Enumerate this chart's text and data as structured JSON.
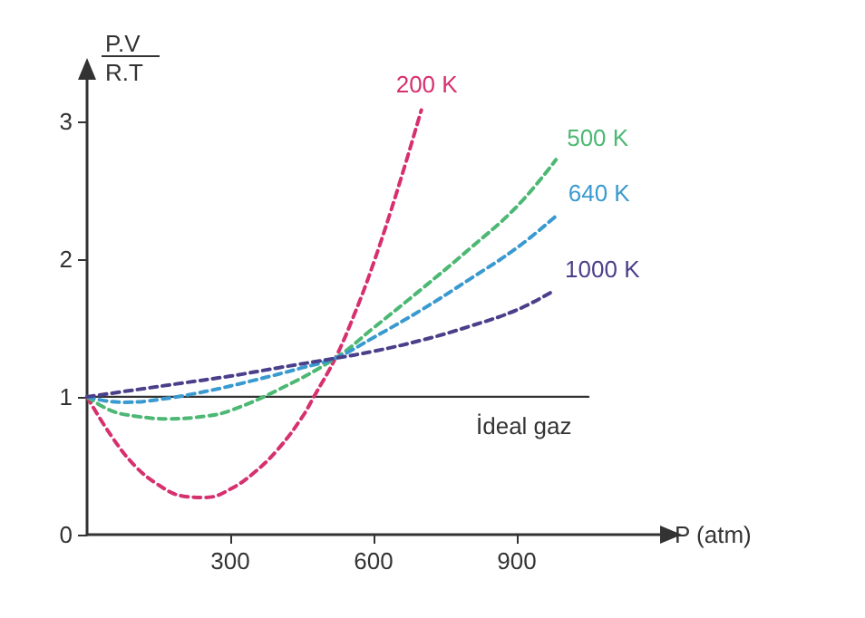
{
  "chart_data": {
    "type": "line",
    "xlabel": "P (atm)",
    "ylabel": "P.V\nR.T",
    "xlim": [
      0,
      1200
    ],
    "ylim": [
      0,
      3.3
    ],
    "xticks": [
      300,
      600,
      900
    ],
    "yticks": [
      0,
      1,
      2,
      3
    ],
    "grid": false,
    "legend": false,
    "marker": "none",
    "line_style": "dashed",
    "series": [
      {
        "name": "200 K",
        "color": "#d6306e",
        "x": [
          0,
          50,
          100,
          150,
          200,
          250,
          300,
          350,
          400,
          450,
          475,
          520,
          560,
          600,
          650,
          700
        ],
        "values": [
          1,
          0.72,
          0.5,
          0.36,
          0.28,
          0.27,
          0.33,
          0.45,
          0.62,
          0.85,
          1,
          1.28,
          1.6,
          1.97,
          2.5,
          3.08
        ]
      },
      {
        "name": "500 K",
        "color": "#4cb874",
        "x": [
          0,
          50,
          100,
          170,
          250,
          300,
          400,
          520,
          600,
          700,
          800,
          900,
          982
        ],
        "values": [
          1,
          0.9,
          0.86,
          0.84,
          0.86,
          0.9,
          1.05,
          1.28,
          1.5,
          1.78,
          2.07,
          2.38,
          2.72
        ]
      },
      {
        "name": "640 K",
        "color": "#3a9ad0",
        "x": [
          0,
          40,
          80,
          150,
          250,
          350,
          450,
          520,
          600,
          700,
          800,
          900,
          985
        ],
        "values": [
          1,
          0.97,
          0.96,
          0.98,
          1.04,
          1.12,
          1.21,
          1.28,
          1.43,
          1.63,
          1.85,
          2.08,
          2.32
        ]
      },
      {
        "name": "1000 K",
        "color": "#4a3f8a",
        "x": [
          0,
          100,
          200,
          300,
          400,
          520,
          600,
          700,
          800,
          900,
          978
        ],
        "values": [
          1,
          1.05,
          1.1,
          1.15,
          1.21,
          1.28,
          1.33,
          1.41,
          1.51,
          1.63,
          1.77
        ]
      },
      {
        "name": "İdeal gaz",
        "color": "#333333",
        "line_style": "solid",
        "x": [
          0,
          1050
        ],
        "values": [
          1,
          1
        ]
      }
    ]
  }
}
